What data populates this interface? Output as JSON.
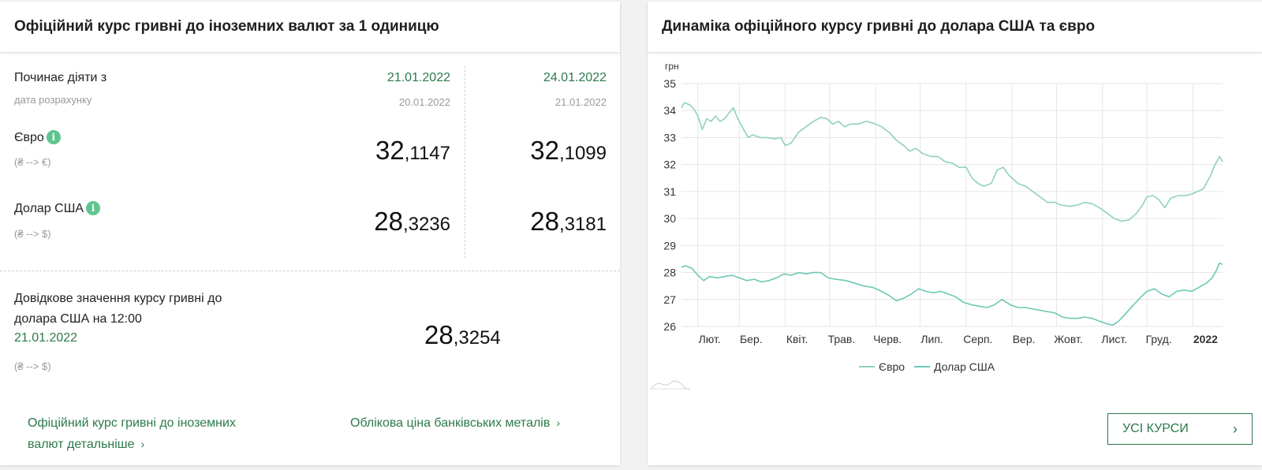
{
  "left": {
    "title": "Офіційний курс гривні до іноземних валют за 1 одиницю",
    "starts_label": "Починає діяти з",
    "calc_label": "дата розрахунку",
    "columns": [
      {
        "date": "21.01.2022",
        "calc_date": "20.01.2022",
        "eur_int": "32",
        "eur_frac": ",1147",
        "usd_int": "28",
        "usd_frac": ",3236"
      },
      {
        "date": "24.01.2022",
        "calc_date": "21.01.2022",
        "eur_int": "32",
        "eur_frac": ",1099",
        "usd_int": "28",
        "usd_frac": ",3181"
      }
    ],
    "eur_label": "Євро",
    "eur_sub": "(₴ --> €)",
    "usd_label": "Долар США",
    "usd_sub": "(₴ --> $)",
    "info_icon": "i",
    "ref_text_line1": "Довідкове значення курсу гривні до",
    "ref_text_line2": "долара США на 12:00",
    "ref_date": "21.01.2022",
    "ref_sub": "(₴ --> $)",
    "ref_int": "28",
    "ref_frac": ",3254",
    "link1_line1": "Офіційний курс гривні до іноземних",
    "link1_line2": "валют детальніше",
    "link2": "Облікова ціна банківських металів",
    "chevron": "›"
  },
  "right": {
    "title": "Динаміка офіційного курсу гривні до долара США та євро",
    "button_label": "УСІ КУРСИ",
    "chevron": "›"
  },
  "chart_data": {
    "type": "line",
    "title": "",
    "ylabel": "грн",
    "ylim": [
      26,
      35
    ],
    "yticks": [
      26,
      27,
      28,
      29,
      30,
      31,
      32,
      33,
      34,
      35
    ],
    "xlim": [
      "2021-01-21",
      "2022-01-21"
    ],
    "xticks": [
      {
        "date": "2021-02-01",
        "label": "Лют."
      },
      {
        "date": "2021-03-01",
        "label": "Бер."
      },
      {
        "date": "2021-04-01",
        "label": "Квіт."
      },
      {
        "date": "2021-05-01",
        "label": "Трав."
      },
      {
        "date": "2021-06-01",
        "label": "Черв."
      },
      {
        "date": "2021-07-01",
        "label": "Лип."
      },
      {
        "date": "2021-08-01",
        "label": "Серп."
      },
      {
        "date": "2021-09-01",
        "label": "Вер."
      },
      {
        "date": "2021-10-01",
        "label": "Жовт."
      },
      {
        "date": "2021-11-01",
        "label": "Лист."
      },
      {
        "date": "2021-12-01",
        "label": "Груд."
      },
      {
        "date": "2022-01-01",
        "label": "2022"
      }
    ],
    "grid": true,
    "legend_position": "bottom-center",
    "colors": {
      "eur": "#8fd3b4",
      "usd": "#6cc9b4",
      "grid": "#e6e6e6"
    },
    "series": [
      {
        "name": "Євро",
        "points": [
          [
            "2021-01-21",
            34.1
          ],
          [
            "2021-01-23",
            34.3
          ],
          [
            "2021-01-27",
            34.2
          ],
          [
            "2021-01-30",
            34.0
          ],
          [
            "2021-02-01",
            33.8
          ],
          [
            "2021-02-04",
            33.3
          ],
          [
            "2021-02-07",
            33.7
          ],
          [
            "2021-02-10",
            33.6
          ],
          [
            "2021-02-13",
            33.8
          ],
          [
            "2021-02-16",
            33.6
          ],
          [
            "2021-02-19",
            33.7
          ],
          [
            "2021-02-22",
            33.9
          ],
          [
            "2021-02-25",
            34.1
          ],
          [
            "2021-02-28",
            33.7
          ],
          [
            "2021-03-04",
            33.3
          ],
          [
            "2021-03-07",
            33.0
          ],
          [
            "2021-03-10",
            33.1
          ],
          [
            "2021-03-15",
            33.0
          ],
          [
            "2021-03-20",
            33.0
          ],
          [
            "2021-03-25",
            32.95
          ],
          [
            "2021-03-29",
            33.0
          ],
          [
            "2021-04-01",
            32.7
          ],
          [
            "2021-04-05",
            32.8
          ],
          [
            "2021-04-10",
            33.2
          ],
          [
            "2021-04-15",
            33.4
          ],
          [
            "2021-04-20",
            33.6
          ],
          [
            "2021-04-25",
            33.75
          ],
          [
            "2021-04-29",
            33.7
          ],
          [
            "2021-05-03",
            33.5
          ],
          [
            "2021-05-07",
            33.6
          ],
          [
            "2021-05-11",
            33.4
          ],
          [
            "2021-05-15",
            33.5
          ],
          [
            "2021-05-20",
            33.5
          ],
          [
            "2021-05-26",
            33.6
          ],
          [
            "2021-06-01",
            33.5
          ],
          [
            "2021-06-05",
            33.4
          ],
          [
            "2021-06-10",
            33.2
          ],
          [
            "2021-06-15",
            32.9
          ],
          [
            "2021-06-20",
            32.7
          ],
          [
            "2021-06-24",
            32.5
          ],
          [
            "2021-06-28",
            32.6
          ],
          [
            "2021-07-03",
            32.4
          ],
          [
            "2021-07-08",
            32.3
          ],
          [
            "2021-07-13",
            32.3
          ],
          [
            "2021-07-18",
            32.1
          ],
          [
            "2021-07-23",
            32.05
          ],
          [
            "2021-07-27",
            31.9
          ],
          [
            "2021-08-01",
            31.9
          ],
          [
            "2021-08-05",
            31.5
          ],
          [
            "2021-08-09",
            31.3
          ],
          [
            "2021-08-13",
            31.2
          ],
          [
            "2021-08-18",
            31.3
          ],
          [
            "2021-08-22",
            31.8
          ],
          [
            "2021-08-26",
            31.9
          ],
          [
            "2021-08-30",
            31.6
          ],
          [
            "2021-09-05",
            31.3
          ],
          [
            "2021-09-10",
            31.2
          ],
          [
            "2021-09-15",
            31.0
          ],
          [
            "2021-09-20",
            30.8
          ],
          [
            "2021-09-25",
            30.6
          ],
          [
            "2021-09-30",
            30.6
          ],
          [
            "2021-10-04",
            30.5
          ],
          [
            "2021-10-10",
            30.45
          ],
          [
            "2021-10-15",
            30.5
          ],
          [
            "2021-10-20",
            30.6
          ],
          [
            "2021-10-25",
            30.55
          ],
          [
            "2021-10-30",
            30.4
          ],
          [
            "2021-11-04",
            30.2
          ],
          [
            "2021-11-09",
            30.0
          ],
          [
            "2021-11-14",
            29.9
          ],
          [
            "2021-11-19",
            29.95
          ],
          [
            "2021-11-24",
            30.2
          ],
          [
            "2021-11-28",
            30.5
          ],
          [
            "2021-12-01",
            30.8
          ],
          [
            "2021-12-05",
            30.85
          ],
          [
            "2021-12-09",
            30.7
          ],
          [
            "2021-12-13",
            30.4
          ],
          [
            "2021-12-17",
            30.75
          ],
          [
            "2021-12-22",
            30.85
          ],
          [
            "2021-12-27",
            30.85
          ],
          [
            "2021-12-31",
            30.9
          ],
          [
            "2022-01-04",
            31.0
          ],
          [
            "2022-01-08",
            31.1
          ],
          [
            "2022-01-12",
            31.5
          ],
          [
            "2022-01-16",
            32.0
          ],
          [
            "2022-01-19",
            32.3
          ],
          [
            "2022-01-21",
            32.1
          ]
        ]
      },
      {
        "name": "Долар США",
        "points": [
          [
            "2021-01-21",
            28.2
          ],
          [
            "2021-01-24",
            28.25
          ],
          [
            "2021-01-28",
            28.15
          ],
          [
            "2021-02-01",
            27.9
          ],
          [
            "2021-02-05",
            27.7
          ],
          [
            "2021-02-09",
            27.85
          ],
          [
            "2021-02-14",
            27.8
          ],
          [
            "2021-02-19",
            27.85
          ],
          [
            "2021-02-24",
            27.9
          ],
          [
            "2021-03-01",
            27.8
          ],
          [
            "2021-03-06",
            27.7
          ],
          [
            "2021-03-11",
            27.75
          ],
          [
            "2021-03-16",
            27.65
          ],
          [
            "2021-03-21",
            27.7
          ],
          [
            "2021-03-26",
            27.8
          ],
          [
            "2021-03-31",
            27.95
          ],
          [
            "2021-04-05",
            27.9
          ],
          [
            "2021-04-10",
            28.0
          ],
          [
            "2021-04-15",
            27.95
          ],
          [
            "2021-04-20",
            28.0
          ],
          [
            "2021-04-25",
            28.0
          ],
          [
            "2021-04-30",
            27.8
          ],
          [
            "2021-05-05",
            27.75
          ],
          [
            "2021-05-12",
            27.7
          ],
          [
            "2021-05-18",
            27.6
          ],
          [
            "2021-05-24",
            27.5
          ],
          [
            "2021-05-30",
            27.45
          ],
          [
            "2021-06-05",
            27.3
          ],
          [
            "2021-06-10",
            27.15
          ],
          [
            "2021-06-15",
            26.95
          ],
          [
            "2021-06-20",
            27.05
          ],
          [
            "2021-06-25",
            27.2
          ],
          [
            "2021-06-30",
            27.4
          ],
          [
            "2021-07-05",
            27.3
          ],
          [
            "2021-07-10",
            27.25
          ],
          [
            "2021-07-15",
            27.3
          ],
          [
            "2021-07-20",
            27.2
          ],
          [
            "2021-07-25",
            27.1
          ],
          [
            "2021-07-30",
            26.9
          ],
          [
            "2021-08-05",
            26.8
          ],
          [
            "2021-08-10",
            26.75
          ],
          [
            "2021-08-15",
            26.7
          ],
          [
            "2021-08-20",
            26.8
          ],
          [
            "2021-08-25",
            27.0
          ],
          [
            "2021-08-31",
            26.8
          ],
          [
            "2021-09-05",
            26.7
          ],
          [
            "2021-09-10",
            26.7
          ],
          [
            "2021-09-15",
            26.65
          ],
          [
            "2021-09-20",
            26.6
          ],
          [
            "2021-09-25",
            26.55
          ],
          [
            "2021-09-30",
            26.5
          ],
          [
            "2021-10-05",
            26.35
          ],
          [
            "2021-10-10",
            26.3
          ],
          [
            "2021-10-15",
            26.3
          ],
          [
            "2021-10-20",
            26.35
          ],
          [
            "2021-10-25",
            26.3
          ],
          [
            "2021-10-30",
            26.2
          ],
          [
            "2021-11-04",
            26.1
          ],
          [
            "2021-11-08",
            26.05
          ],
          [
            "2021-11-12",
            26.2
          ],
          [
            "2021-11-17",
            26.5
          ],
          [
            "2021-11-22",
            26.8
          ],
          [
            "2021-11-27",
            27.1
          ],
          [
            "2021-12-01",
            27.3
          ],
          [
            "2021-12-06",
            27.4
          ],
          [
            "2021-12-11",
            27.2
          ],
          [
            "2021-12-16",
            27.1
          ],
          [
            "2021-12-21",
            27.3
          ],
          [
            "2021-12-26",
            27.35
          ],
          [
            "2021-12-31",
            27.3
          ],
          [
            "2022-01-05",
            27.45
          ],
          [
            "2022-01-10",
            27.6
          ],
          [
            "2022-01-14",
            27.8
          ],
          [
            "2022-01-17",
            28.1
          ],
          [
            "2022-01-19",
            28.35
          ],
          [
            "2022-01-21",
            28.3
          ]
        ]
      }
    ]
  }
}
